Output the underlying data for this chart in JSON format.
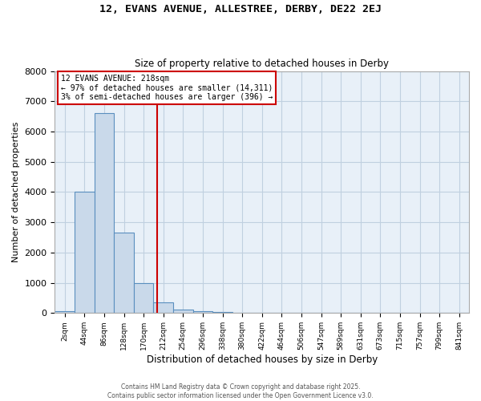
{
  "title1": "12, EVANS AVENUE, ALLESTREE, DERBY, DE22 2EJ",
  "title2": "Size of property relative to detached houses in Derby",
  "xlabel": "Distribution of detached houses by size in Derby",
  "ylabel": "Number of detached properties",
  "bins": [
    "2sqm",
    "44sqm",
    "86sqm",
    "128sqm",
    "170sqm",
    "212sqm",
    "254sqm",
    "296sqm",
    "338sqm",
    "380sqm",
    "422sqm",
    "464sqm",
    "506sqm",
    "547sqm",
    "589sqm",
    "631sqm",
    "673sqm",
    "715sqm",
    "757sqm",
    "799sqm",
    "841sqm"
  ],
  "values": [
    75,
    4000,
    6600,
    2650,
    1000,
    350,
    120,
    50,
    30,
    10,
    5,
    0,
    0,
    0,
    0,
    0,
    0,
    0,
    0,
    0,
    0
  ],
  "bar_color": "#c9d9ea",
  "bar_edge_color": "#5a8fbf",
  "grid_color": "#c0d0e0",
  "background_color": "#e8f0f8",
  "red_line_x": 4.7,
  "annotation_title": "12 EVANS AVENUE: 218sqm",
  "annotation_line1": "← 97% of detached houses are smaller (14,311)",
  "annotation_line2": "3% of semi-detached houses are larger (396) →",
  "annotation_box_color": "#cc0000",
  "footer1": "Contains HM Land Registry data © Crown copyright and database right 2025.",
  "footer2": "Contains public sector information licensed under the Open Government Licence v3.0.",
  "ylim": [
    0,
    8000
  ],
  "yticks": [
    0,
    1000,
    2000,
    3000,
    4000,
    5000,
    6000,
    7000,
    8000
  ]
}
